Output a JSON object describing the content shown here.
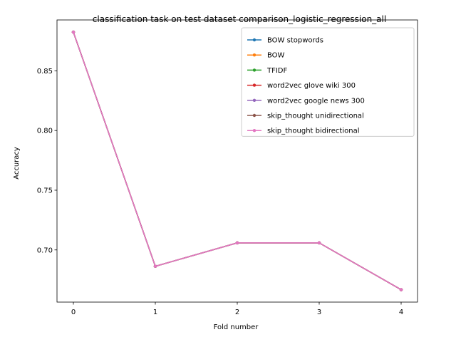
{
  "chart_data": {
    "type": "line",
    "title": "classification task on test dataset comparison_logistic_regression_all",
    "xlabel": "Fold number",
    "ylabel": "Accuracy",
    "x": [
      0,
      1,
      2,
      3,
      4
    ],
    "x_tick_labels": [
      "0",
      "1",
      "2",
      "3",
      "4"
    ],
    "y_ticks": [
      0.7,
      0.75,
      0.8,
      0.85
    ],
    "y_tick_labels": [
      "0.70",
      "0.75",
      "0.80",
      "0.85"
    ],
    "xlim": [
      -0.2,
      4.2
    ],
    "ylim": [
      0.6563,
      0.8926
    ],
    "grid": false,
    "legend_position": "top-right",
    "series": [
      {
        "name": "BOW stopwords",
        "color": "#1f77b4",
        "values": [
          0.8824,
          0.6863,
          0.7059,
          0.7059,
          0.6667
        ]
      },
      {
        "name": "BOW",
        "color": "#ff7f0e",
        "values": [
          0.8824,
          0.6863,
          0.7059,
          0.7059,
          0.6667
        ]
      },
      {
        "name": "TFIDF",
        "color": "#2ca02c",
        "values": [
          0.8824,
          0.6863,
          0.7059,
          0.7059,
          0.6667
        ]
      },
      {
        "name": "word2vec glove wiki 300",
        "color": "#d62728",
        "values": [
          0.8824,
          0.6863,
          0.7059,
          0.7059,
          0.6667
        ]
      },
      {
        "name": "word2vec google news 300",
        "color": "#9467bd",
        "values": [
          0.8824,
          0.6863,
          0.7059,
          0.7059,
          0.6667
        ]
      },
      {
        "name": "skip_thought unidirectional",
        "color": "#8c564b",
        "values": [
          0.8824,
          0.6863,
          0.7059,
          0.7059,
          0.6667
        ]
      },
      {
        "name": "skip_thought bidirectional",
        "color": "#e377c2",
        "values": [
          0.8824,
          0.6863,
          0.7059,
          0.7059,
          0.6667
        ]
      }
    ]
  }
}
